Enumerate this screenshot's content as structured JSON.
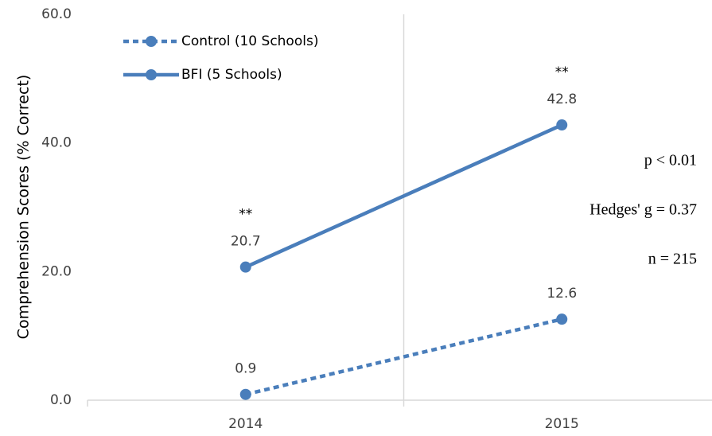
{
  "chart_data": {
    "type": "line",
    "y_label": "Comprehension Scores (% Correct)",
    "categories": [
      "2014",
      "2015"
    ],
    "series": [
      {
        "name": "Control (10 Schools)",
        "color": "#4a7ebb",
        "dash": "dotted",
        "values": [
          0.9,
          12.6
        ]
      },
      {
        "name": "BFI (5 Schools)",
        "color": "#4a7ebb",
        "dash": "solid",
        "values": [
          20.7,
          42.8
        ],
        "point_annotations": [
          "**",
          "**"
        ]
      }
    ],
    "ylim": [
      0,
      60
    ],
    "yticks": [
      {
        "value": 0,
        "label": "0.0"
      },
      {
        "value": 20,
        "label": "20.0"
      },
      {
        "value": 40,
        "label": "40.0"
      },
      {
        "value": 60,
        "label": "60.0"
      }
    ],
    "annotations": [
      "p < 0.01",
      "Hedges' g = 0.37",
      "n = 215"
    ],
    "legend": "upper left"
  }
}
